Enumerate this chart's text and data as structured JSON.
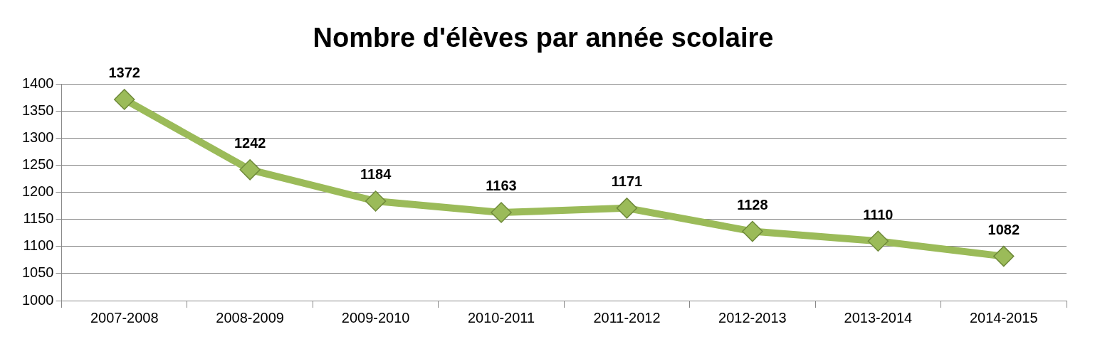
{
  "chart_data": {
    "type": "line",
    "title": "Nombre d'élèves par année scolaire",
    "categories": [
      "2007-2008",
      "2008-2009",
      "2009-2010",
      "2010-2011",
      "2011-2012",
      "2012-2013",
      "2013-2014",
      "2014-2015"
    ],
    "values": [
      1372,
      1242,
      1184,
      1163,
      1171,
      1128,
      1110,
      1082
    ],
    "color": "#9bbb59",
    "ylim": [
      1000,
      1400
    ],
    "yticks": [
      1000,
      1050,
      1100,
      1150,
      1200,
      1250,
      1300,
      1350,
      1400
    ],
    "grid": "y",
    "legend": false,
    "marker": "diamond",
    "line_style": "solid",
    "data_labels": true
  }
}
